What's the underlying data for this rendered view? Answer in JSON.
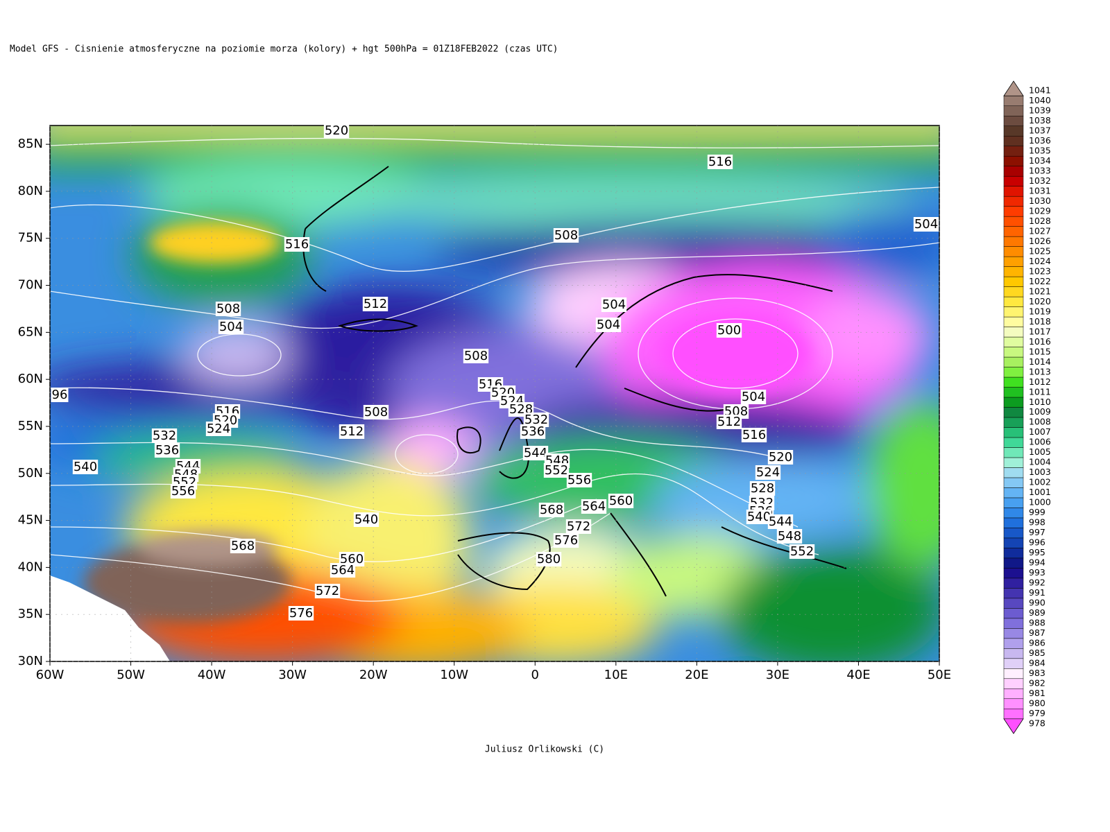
{
  "title": "Model GFS - Cisnienie atmosferyczne na poziomie morza (kolory) + hgt 500hPa   = 01Z18FEB2022 (czas UTC)",
  "credit": "Juliusz Orlikowski (C)",
  "map": {
    "xlim": [
      -60,
      50
    ],
    "ylim": [
      30,
      87
    ],
    "xticks": [
      {
        "value": -60,
        "label": "60W"
      },
      {
        "value": -50,
        "label": "50W"
      },
      {
        "value": -40,
        "label": "40W"
      },
      {
        "value": -30,
        "label": "30W"
      },
      {
        "value": -20,
        "label": "20W"
      },
      {
        "value": -10,
        "label": "10W"
      },
      0,
      {
        "value": 10,
        "label": "10E"
      },
      {
        "value": 20,
        "label": "20E"
      },
      {
        "value": 30,
        "label": "30E"
      },
      {
        "value": 40,
        "label": "40E"
      },
      {
        "value": 50,
        "label": "50E"
      }
    ],
    "yticks": [
      {
        "value": 30,
        "label": "30N"
      },
      {
        "value": 35,
        "label": "35N"
      },
      {
        "value": 40,
        "label": "40N"
      },
      {
        "value": 45,
        "label": "45N"
      },
      {
        "value": 50,
        "label": "50N"
      },
      {
        "value": 55,
        "label": "55N"
      },
      {
        "value": 60,
        "label": "60N"
      },
      {
        "value": 65,
        "label": "65N"
      },
      {
        "value": 70,
        "label": "70N"
      },
      {
        "value": 75,
        "label": "75N"
      },
      {
        "value": 80,
        "label": "80N"
      },
      {
        "value": 85,
        "label": "85N"
      }
    ],
    "contour_labels": [
      520,
      516,
      504,
      508,
      516,
      512,
      508,
      504,
      504,
      504,
      500,
      508,
      96,
      516,
      520,
      524,
      528,
      532,
      536,
      508,
      504,
      508,
      512,
      516,
      516,
      520,
      524,
      512,
      532,
      536,
      540,
      544,
      548,
      552,
      556,
      544,
      548,
      552,
      556,
      520,
      524,
      528,
      532,
      536,
      540,
      544,
      548,
      552,
      560,
      564,
      568,
      540,
      572,
      576,
      580,
      568,
      560,
      564,
      572,
      576
    ]
  },
  "colorbar": {
    "levels": [
      978,
      979,
      980,
      981,
      982,
      983,
      984,
      985,
      986,
      987,
      988,
      989,
      990,
      991,
      992,
      993,
      994,
      995,
      996,
      997,
      998,
      999,
      1000,
      1001,
      1002,
      1003,
      1004,
      1005,
      1006,
      1007,
      1008,
      1009,
      1010,
      1011,
      1012,
      1013,
      1014,
      1015,
      1016,
      1017,
      1018,
      1019,
      1020,
      1021,
      1022,
      1023,
      1024,
      1025,
      1026,
      1027,
      1028,
      1029,
      1030,
      1031,
      1032,
      1033,
      1034,
      1035,
      1036,
      1037,
      1038,
      1039,
      1040,
      1041
    ],
    "colors": [
      "#ff50ff",
      "#ff70ff",
      "#ff90ff",
      "#ffb0ff",
      "#ffd0ff",
      "#fff0ff",
      "#e0d0f8",
      "#c8b8f0",
      "#b0a0ec",
      "#9888e4",
      "#8070dc",
      "#6c5cd0",
      "#5848c0",
      "#4434b0",
      "#3020a0",
      "#1c1090",
      "#101888",
      "#102c9c",
      "#1444b4",
      "#1858c8",
      "#2070dc",
      "#3088e8",
      "#48a0f0",
      "#64b4f4",
      "#84c8f4",
      "#a0dcf0",
      "#a0f0d8",
      "#70e8b8",
      "#40d898",
      "#28c078",
      "#18a058",
      "#108840",
      "#0c9c20",
      "#20c020",
      "#40e020",
      "#80f040",
      "#a8f060",
      "#c8f880",
      "#e0fca0",
      "#f4fcc0",
      "#fffca0",
      "#fff470",
      "#ffe840",
      "#ffd820",
      "#ffc800",
      "#ffb400",
      "#ffa000",
      "#ff8c00",
      "#ff7800",
      "#ff6400",
      "#ff5000",
      "#ff3c00",
      "#f02800",
      "#e01400",
      "#c80000",
      "#a80000",
      "#8c1000",
      "#742010",
      "#603020",
      "#583828",
      "#6c4c40",
      "#806458",
      "#987c70",
      "#b09488"
    ]
  }
}
